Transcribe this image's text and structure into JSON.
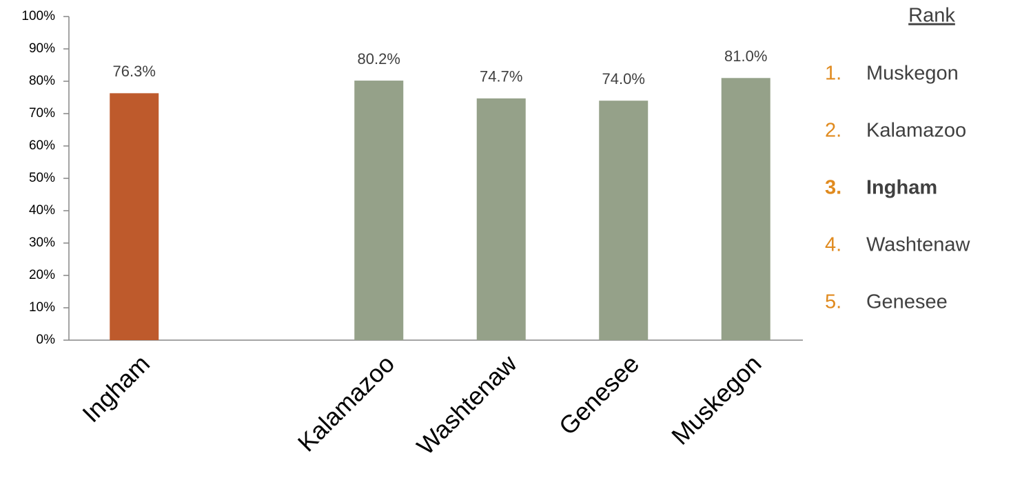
{
  "chart_data": {
    "type": "bar",
    "categories": [
      "Ingham",
      null,
      "Kalamazoo",
      "Washtenaw",
      "Genesee",
      "Muskegon"
    ],
    "values": [
      76.3,
      null,
      80.2,
      74.7,
      74.0,
      81.0
    ],
    "value_labels": [
      "76.3%",
      null,
      "80.2%",
      "74.7%",
      "74.0%",
      "81.0%"
    ],
    "colors": [
      "#be5a2c",
      null,
      "#95a189",
      "#95a189",
      "#95a189",
      "#95a189"
    ],
    "ylim": [
      0,
      100
    ],
    "yticks": [
      {
        "value": 0,
        "label": "0%"
      },
      {
        "value": 10,
        "label": "10%"
      },
      {
        "value": 20,
        "label": "20%"
      },
      {
        "value": 30,
        "label": "30%"
      },
      {
        "value": 40,
        "label": "40%"
      },
      {
        "value": 50,
        "label": "50%"
      },
      {
        "value": 60,
        "label": "60%"
      },
      {
        "value": 70,
        "label": "70%"
      },
      {
        "value": 80,
        "label": "80%"
      },
      {
        "value": 90,
        "label": "90%"
      },
      {
        "value": 100,
        "label": "100%"
      }
    ],
    "grid": false
  },
  "rank_list": {
    "title": "Rank",
    "number_color": "#e08a1e",
    "highlight_index": 2,
    "items": [
      {
        "number": "1.",
        "name": "Muskegon"
      },
      {
        "number": "2.",
        "name": "Kalamazoo"
      },
      {
        "number": "3.",
        "name": "Ingham"
      },
      {
        "number": "4.",
        "name": "Washtenaw"
      },
      {
        "number": "5.",
        "name": "Genesee"
      }
    ]
  }
}
